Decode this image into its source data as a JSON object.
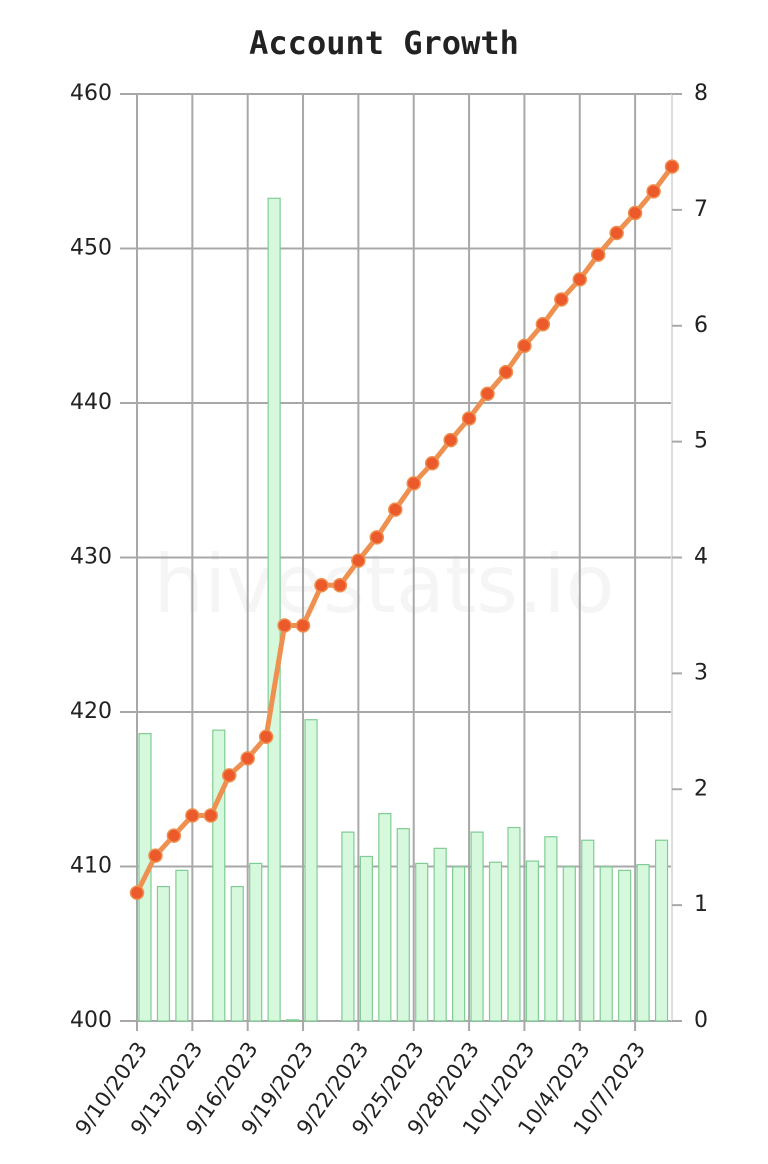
{
  "chart_data": {
    "type": "bar-line",
    "title": "Account Growth",
    "watermark": "hivestats.io",
    "categories": [
      "9/10/2023",
      null,
      null,
      "9/13/2023",
      null,
      null,
      "9/16/2023",
      null,
      null,
      "9/19/2023",
      null,
      null,
      "9/22/2023",
      null,
      null,
      "9/25/2023",
      null,
      null,
      "9/28/2023",
      null,
      null,
      "10/1/2023",
      null,
      null,
      "10/4/2023",
      null,
      null,
      "10/7/2023",
      null,
      null
    ],
    "series": [
      {
        "type": "line",
        "color": "#ee9050",
        "point_color": "#ec5a2c",
        "values": [
          408.3,
          410.7,
          412.0,
          413.3,
          413.3,
          415.9,
          417.0,
          418.4,
          425.6,
          425.6,
          428.2,
          428.2,
          429.8,
          431.3,
          433.1,
          434.8,
          436.1,
          437.6,
          439.0,
          440.6,
          442.0,
          443.7,
          445.1,
          446.7,
          448.0,
          449.6,
          451.0,
          452.3,
          453.7,
          455.3
        ]
      },
      {
        "type": "bar",
        "axis": "y2",
        "color": "#d6f8dd",
        "edge_color": "#80cc94",
        "values": [
          2.48,
          1.16,
          1.3,
          0,
          2.51,
          1.16,
          1.36,
          7.1,
          0.01,
          2.6,
          0,
          1.63,
          1.42,
          1.79,
          1.66,
          1.36,
          1.49,
          1.33,
          1.63,
          1.37,
          1.67,
          1.38,
          1.59,
          1.33,
          1.56,
          1.33,
          1.3,
          1.35,
          1.56,
          0
        ]
      }
    ],
    "ylim": [
      400,
      460
    ],
    "yticks": [
      400,
      410,
      420,
      430,
      440,
      450,
      460
    ],
    "y2lim": [
      0,
      8
    ],
    "y2ticks": [
      0,
      1,
      2,
      3,
      4,
      5,
      6,
      7,
      8
    ],
    "grid": true
  }
}
